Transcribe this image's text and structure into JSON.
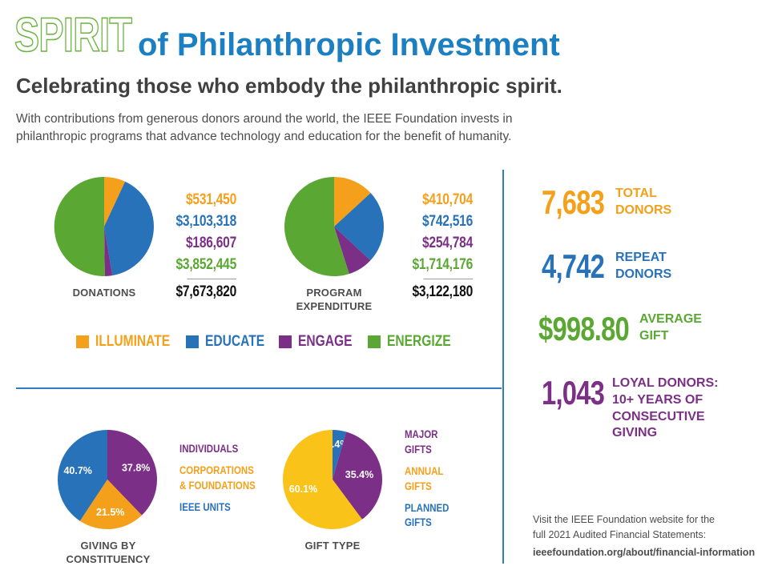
{
  "header": {
    "spirit": "SPIRIT",
    "title": "of Philanthropic Investment",
    "subtitle": "Celebrating those who embody the philanthropic spirit.",
    "intro": "With contributions from generous donors around the world, the IEEE Foundation invests in philanthropic programs that advance technology and education for the benefit of humanity."
  },
  "colors": {
    "illuminate": "#f5a01a",
    "educate": "#2872ba",
    "engage": "#7b2f87",
    "energize": "#5aa833",
    "title_blue": "#1b7fc1",
    "spirit_green": "#6cb33f",
    "gift_yellow": "#f9c31a"
  },
  "legend": [
    {
      "key": "illuminate",
      "label": "ILLUMINATE"
    },
    {
      "key": "educate",
      "label": "EDUCATE"
    },
    {
      "key": "engage",
      "label": "ENGAGE"
    },
    {
      "key": "energize",
      "label": "ENERGIZE"
    }
  ],
  "chart_data": [
    {
      "type": "pie",
      "title": "DONATIONS",
      "categories": [
        "ILLUMINATE",
        "EDUCATE",
        "ENGAGE",
        "ENERGIZE"
      ],
      "values": [
        531450,
        3103318,
        186607,
        3852445
      ],
      "labels": [
        "$531,450",
        "$3,103,318",
        "$186,607",
        "$3,852,445"
      ],
      "total": "$7,673,820"
    },
    {
      "type": "pie",
      "title": "PROGRAM EXPENDITURE",
      "categories": [
        "ILLUMINATE",
        "EDUCATE",
        "ENGAGE",
        "ENERGIZE"
      ],
      "values": [
        410704,
        742516,
        254784,
        1714176
      ],
      "labels": [
        "$410,704",
        "$742,516",
        "$254,784",
        "$1,714,176"
      ],
      "total": "$3,122,180"
    },
    {
      "type": "pie",
      "title": "GIVING BY CONSTITUENCY",
      "categories": [
        "INDIVIDUALS",
        "CORPORATIONS & FOUNDATIONS",
        "IEEE UNITS"
      ],
      "values": [
        37.8,
        21.5,
        40.7
      ],
      "labels": [
        "37.8%",
        "21.5%",
        "40.7%"
      ]
    },
    {
      "type": "pie",
      "title": "GIFT TYPE",
      "categories": [
        "PLANNED GIFTS",
        "MAJOR GIFTS",
        "ANNUAL GIFTS"
      ],
      "values": [
        4.4,
        35.4,
        60.1
      ],
      "labels": [
        "4.4%",
        "35.4%",
        "60.1%"
      ]
    }
  ],
  "constituency_labels": [
    "INDIVIDUALS",
    "CORPORATIONS",
    "& FOUNDATIONS",
    "IEEE UNITS"
  ],
  "gift_labels": [
    "MAJOR",
    "GIFTS",
    "ANNUAL",
    "GIFTS",
    "PLANNED",
    "GIFTS"
  ],
  "stats": [
    {
      "value": "7,683",
      "label1": "TOTAL",
      "label2": "DONORS",
      "label3": "",
      "label4": ""
    },
    {
      "value": "4,742",
      "label1": "REPEAT",
      "label2": "DONORS",
      "label3": "",
      "label4": ""
    },
    {
      "value": "$998.80",
      "label1": "AVERAGE",
      "label2": "GIFT",
      "label3": "",
      "label4": ""
    },
    {
      "value": "1,043",
      "label1": "LOYAL DONORS:",
      "label2": "10+ YEARS OF",
      "label3": "CONSECUTIVE",
      "label4": "GIVING"
    }
  ],
  "footer": {
    "note1": "Visit the IEEE Foundation website for the",
    "note2": "full 2021 Audited Financial Statements:",
    "url": "ieeefoundation.org/about/financial-information"
  }
}
